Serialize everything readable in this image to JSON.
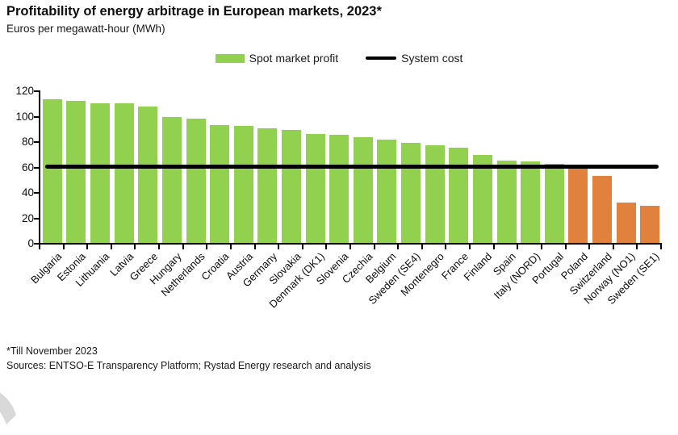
{
  "header": {
    "title": "Profitability of energy arbitrage in European markets, 2023*",
    "subtitle": "Euros per megawatt-hour (MWh)"
  },
  "legend": {
    "spot_label": "Spot market profit",
    "system_label": "System cost"
  },
  "colors": {
    "profit_green": "#92d050",
    "loss_orange": "#e0823e",
    "system_cost_line": "#000000"
  },
  "chart_data": {
    "type": "bar",
    "title": "Profitability of energy arbitrage in European markets, 2023*",
    "ylabel": "Euros per megawatt-hour (MWh)",
    "xlabel": "",
    "ylim": [
      0,
      120
    ],
    "y_ticks": [
      0,
      20,
      40,
      60,
      80,
      100,
      120
    ],
    "grid": false,
    "legend_position": "top-center",
    "legend_entries": [
      "Spot market profit",
      "System cost"
    ],
    "system_cost": 60,
    "categories": [
      "Bulgaria",
      "Estonia",
      "Lithuania",
      "Latvia",
      "Greece",
      "Hungary",
      "Netherlands",
      "Croatia",
      "Austria",
      "Germany",
      "Slovakia",
      "Denmark (DK1)",
      "Slovenia",
      "Czechia",
      "Belgium",
      "Sweden (SE4)",
      "Montenegro",
      "France",
      "Finland",
      "Spain",
      "Italy (NORD)",
      "Portugal",
      "Poland",
      "Switzerland",
      "Norway (NO1)",
      "Sweden (SE1)"
    ],
    "values": [
      113,
      112,
      110,
      110,
      107,
      99,
      98,
      93,
      92,
      90,
      89,
      86,
      85,
      83,
      81,
      79,
      77,
      75,
      69,
      65,
      64,
      62,
      59,
      53,
      32,
      29
    ],
    "bar_colors": [
      "#92d050",
      "#92d050",
      "#92d050",
      "#92d050",
      "#92d050",
      "#92d050",
      "#92d050",
      "#92d050",
      "#92d050",
      "#92d050",
      "#92d050",
      "#92d050",
      "#92d050",
      "#92d050",
      "#92d050",
      "#92d050",
      "#92d050",
      "#92d050",
      "#92d050",
      "#92d050",
      "#92d050",
      "#92d050",
      "#e0823e",
      "#e0823e",
      "#e0823e",
      "#e0823e"
    ]
  },
  "footer": {
    "note": "*Till November 2023",
    "sources": "Sources: ENTSO-E Transparency Platform; Rystad Energy research and analysis"
  }
}
